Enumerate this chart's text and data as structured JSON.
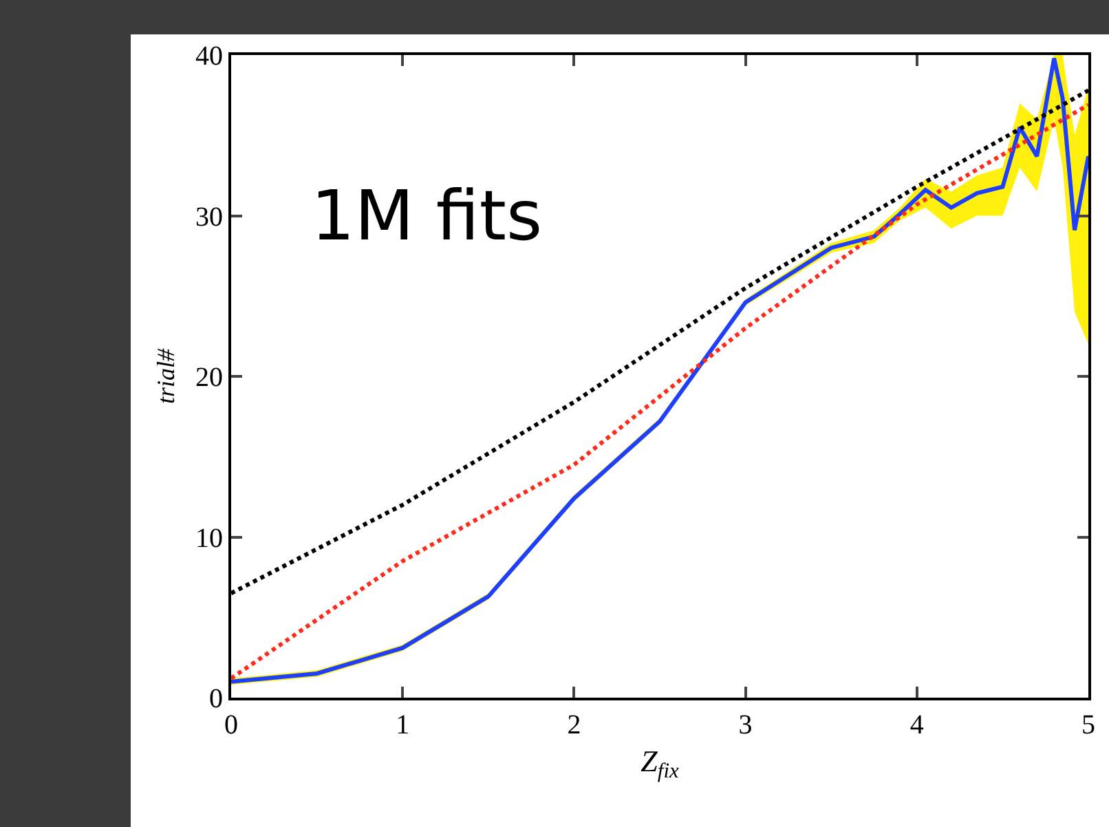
{
  "chart_data": {
    "type": "line",
    "xlabel": "Z$_{fix}$",
    "ylabel": "trial#",
    "annotations": [
      "1M fits"
    ],
    "xlim": [
      0,
      5
    ],
    "xticks": [
      0,
      1,
      2,
      3,
      4,
      5
    ],
    "ylim": [
      0,
      40
    ],
    "yticks": [
      0,
      10,
      20,
      30,
      40
    ],
    "grid": false,
    "marker": "none",
    "series": [
      {
        "color": "#1f3fff",
        "line_style": "solid",
        "x": [
          0,
          0.5,
          1,
          1.5,
          2,
          2.5,
          3,
          3.5,
          3.75,
          3.9,
          4.05,
          4.2,
          4.35,
          4.5,
          4.6,
          4.7,
          4.8,
          4.85,
          4.92,
          5
        ],
        "values": [
          1.0,
          1.5,
          3.1,
          6.3,
          12.4,
          17.2,
          24.6,
          28.0,
          28.7,
          30.1,
          31.6,
          30.5,
          31.4,
          31.8,
          35.5,
          33.7,
          39.8,
          37.3,
          29.1,
          33.7
        ],
        "lower": [
          0.8,
          1.3,
          2.9,
          6.1,
          12.2,
          17.0,
          24.4,
          27.7,
          28.3,
          29.7,
          30.5,
          29.2,
          30.0,
          30.0,
          33.0,
          31.5,
          36.0,
          33.0,
          24.0,
          22.0
        ],
        "upper": [
          1.2,
          1.7,
          3.3,
          6.5,
          12.6,
          17.4,
          24.8,
          28.3,
          29.1,
          30.5,
          32.3,
          31.5,
          32.5,
          33.0,
          37.0,
          36.0,
          40.0,
          40.0,
          35.0,
          38.0
        ]
      },
      {
        "color": "#000000",
        "line_style": "dotted",
        "x": [
          0,
          1,
          2,
          3,
          4,
          5
        ],
        "values": [
          6.5,
          12.0,
          18.4,
          25.5,
          31.8,
          37.8
        ]
      },
      {
        "color": "#ff2a1a",
        "line_style": "dotted",
        "x": [
          0,
          1,
          2,
          3,
          4,
          5
        ],
        "values": [
          1.2,
          8.5,
          14.5,
          23.0,
          30.7,
          36.9
        ]
      }
    ]
  }
}
